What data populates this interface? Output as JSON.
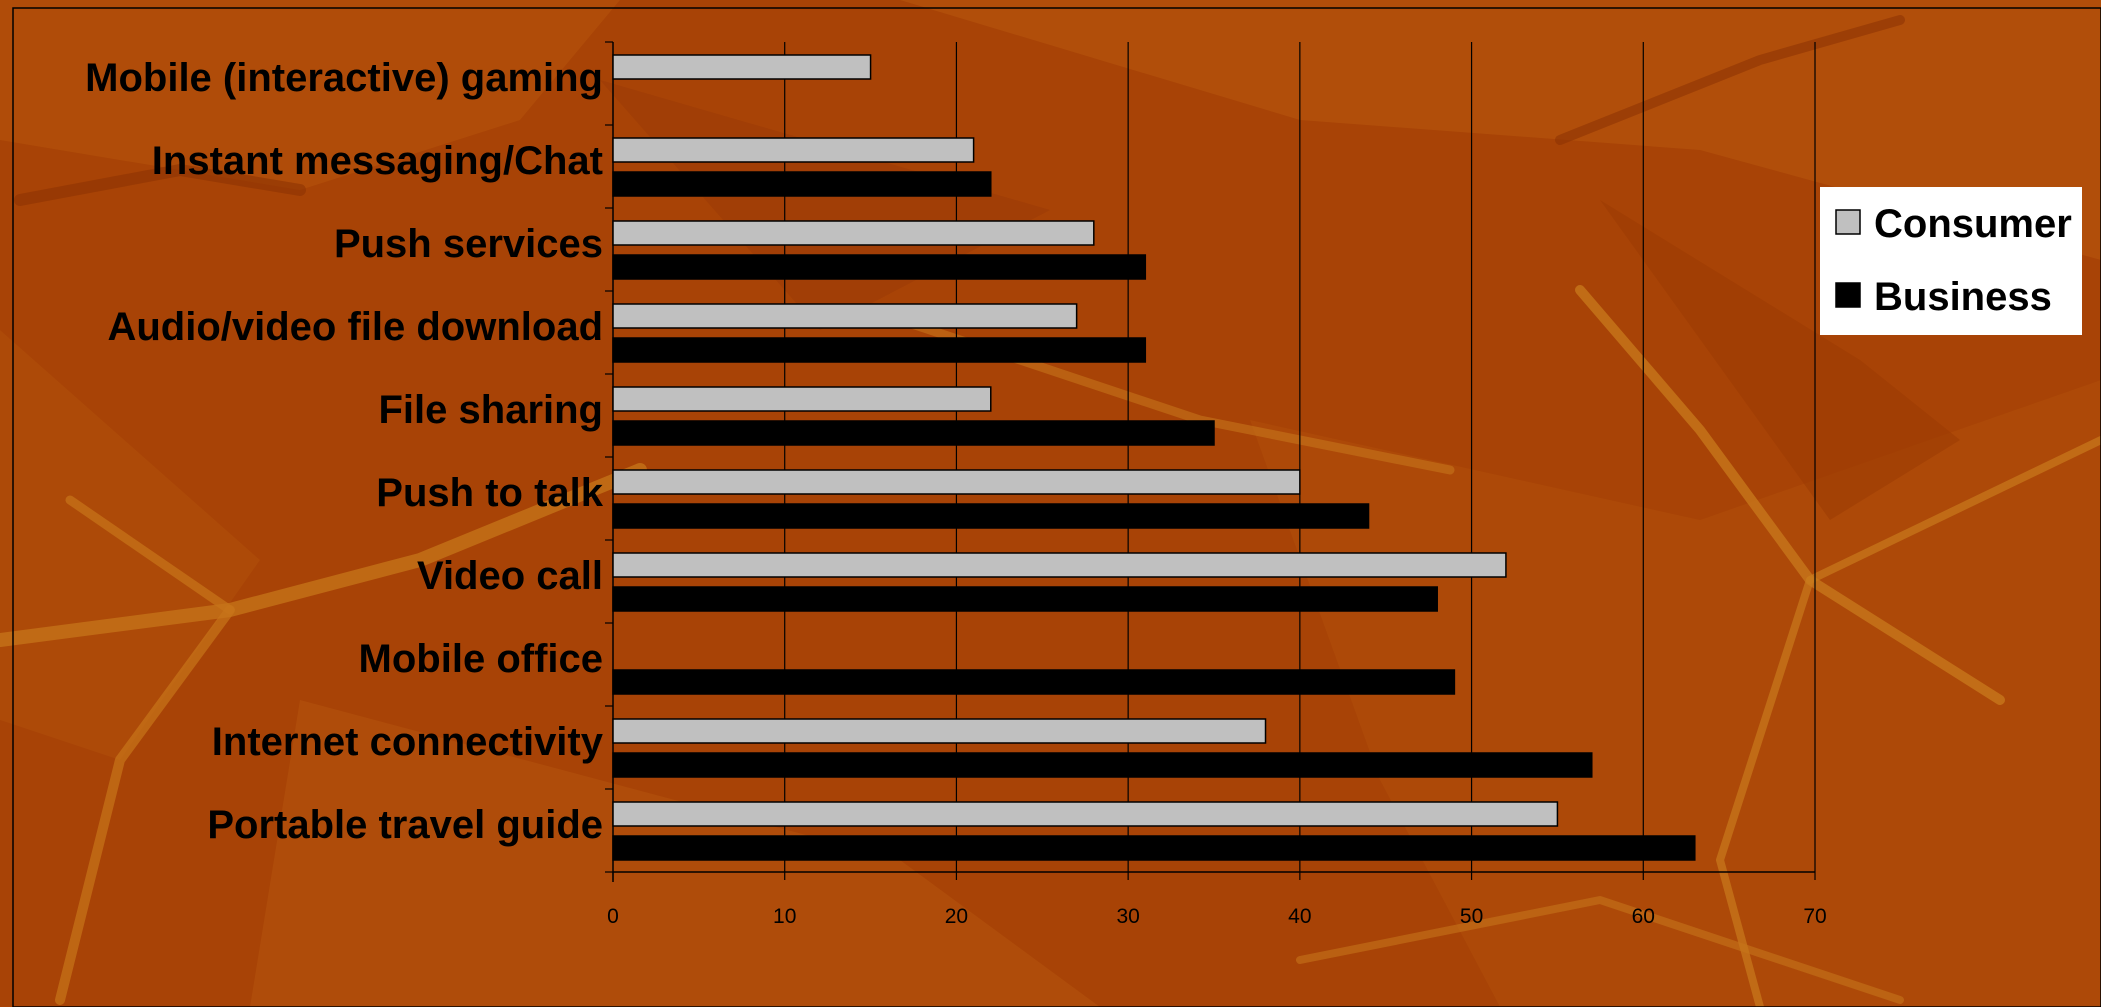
{
  "chart_data": {
    "type": "bar",
    "orientation": "horizontal",
    "categories": [
      "Mobile (interactive) gaming",
      "Instant messaging/Chat",
      "Push services",
      "Audio/video file download",
      "File sharing",
      "Push to talk",
      "Video call",
      "Mobile office",
      "Internet connectivity",
      "Portable travel guide"
    ],
    "series": [
      {
        "name": "Consumer",
        "color": "#c0c0c0",
        "values": [
          15,
          21,
          28,
          27,
          22,
          40,
          52,
          null,
          38,
          55
        ]
      },
      {
        "name": "Business",
        "color": "#000000",
        "values": [
          null,
          22,
          31,
          31,
          35,
          44,
          48,
          49,
          57,
          63
        ]
      }
    ],
    "xlim": [
      0,
      70
    ],
    "xticks": [
      "0",
      "10",
      "20",
      "30",
      "40",
      "50",
      "60",
      "70"
    ],
    "grid": "vertical",
    "legend_position": "right",
    "title": "",
    "xlabel": "",
    "ylabel": ""
  },
  "colors": {
    "background": "#a84306",
    "legend_background": "#ffffff",
    "gridline": "#000000"
  }
}
